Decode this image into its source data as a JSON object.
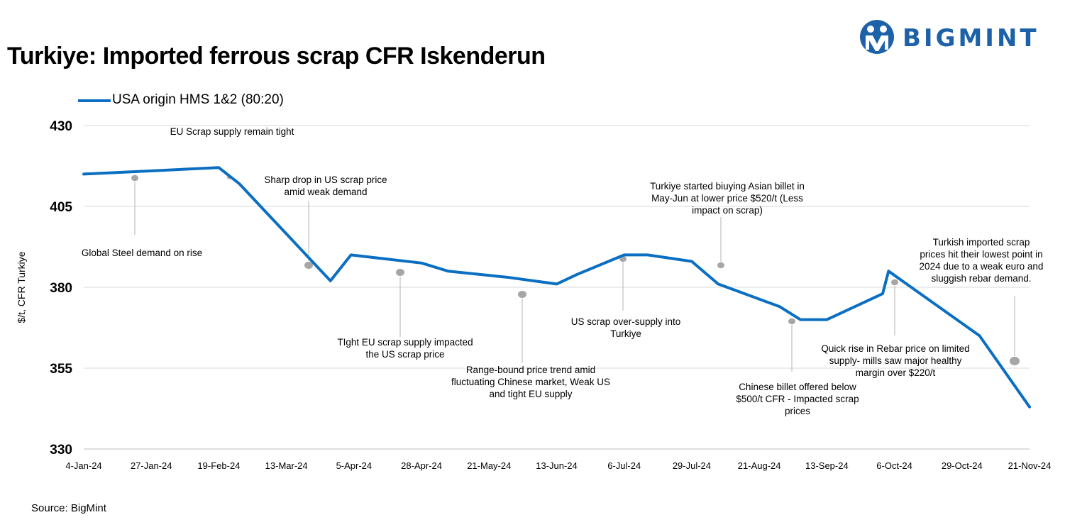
{
  "header": {
    "title": "Turkiye: Imported ferrous scrap CFR Iskenderun",
    "brand": "BIGMINT"
  },
  "source": "Source: BigMint",
  "colors": {
    "line": "#0a6fc2",
    "grid": "#d9d9d9",
    "brand": "#1d62a8",
    "marker": "#a6a6a6"
  },
  "chart_data": {
    "type": "line",
    "ylabel": "$/t, CFR Turkiye",
    "ylim": [
      330,
      430
    ],
    "yticks": [
      330,
      355,
      380,
      405,
      430
    ],
    "xticks": [
      "4-Jan-24",
      "27-Jan-24",
      "19-Feb-24",
      "13-Mar-24",
      "5-Apr-24",
      "28-Apr-24",
      "21-May-24",
      "13-Jun-24",
      "6-Jul-24",
      "29-Jul-24",
      "21-Aug-24",
      "13-Sep-24",
      "6-Oct-24",
      "29-Oct-24",
      "21-Nov-24"
    ],
    "series": [
      {
        "name": "USA origin HMS 1&2 (80:20)",
        "points": [
          [
            "2024-01-04",
            415
          ],
          [
            "2024-02-19",
            417
          ],
          [
            "2024-02-26",
            412
          ],
          [
            "2024-03-28",
            382
          ],
          [
            "2024-04-04",
            390
          ],
          [
            "2024-04-28",
            387.5
          ],
          [
            "2024-05-07",
            385
          ],
          [
            "2024-05-28",
            383
          ],
          [
            "2024-06-13",
            381
          ],
          [
            "2024-06-20",
            384
          ],
          [
            "2024-07-06",
            390
          ],
          [
            "2024-07-14",
            390
          ],
          [
            "2024-07-29",
            388
          ],
          [
            "2024-08-07",
            381
          ],
          [
            "2024-08-28",
            374
          ],
          [
            "2024-09-04",
            370
          ],
          [
            "2024-09-13",
            370
          ],
          [
            "2024-10-02",
            378
          ],
          [
            "2024-10-04",
            385
          ],
          [
            "2024-11-04",
            365
          ],
          [
            "2024-11-21",
            343
          ]
        ]
      }
    ],
    "annotations": [
      {
        "lines": [
          "EU Scrap supply remain tight"
        ]
      },
      {
        "lines": [
          "Global Steel demand on rise"
        ]
      },
      {
        "lines": [
          "Sharp drop in US scrap price",
          "amid weak demand"
        ]
      },
      {
        "lines": [
          "TIght EU scrap supply impacted",
          "the US scrap price"
        ]
      },
      {
        "lines": [
          "Range-bound price trend amid",
          "fluctuating  Chinese market, Weak US",
          "and tight  EU supply"
        ]
      },
      {
        "lines": [
          "US scrap over-supply into",
          "Turkiye"
        ]
      },
      {
        "lines": [
          "Turkiye started biuying Asian billet in",
          "May-Jun at lower price $520/t (Less",
          "impact on scrap)"
        ]
      },
      {
        "lines": [
          "Chinese billet offered below",
          "$500/t  CFR - Impacted scrap",
          "prices"
        ]
      },
      {
        "lines": [
          "Quick rise in Rebar price on limited",
          "supply- mills saw major healthy",
          "margin over $220/t"
        ]
      },
      {
        "lines": [
          "Turkish imported scrap",
          "prices hit their lowest point in",
          "2024 due to a weak euro and",
          "sluggish rebar demand."
        ]
      }
    ]
  }
}
